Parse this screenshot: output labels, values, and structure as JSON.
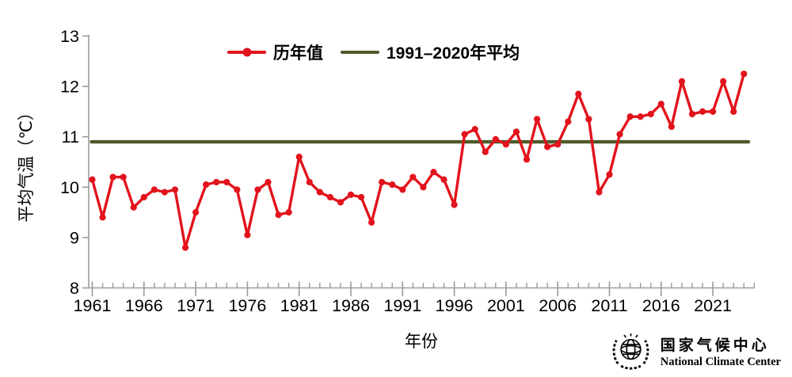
{
  "chart_data": {
    "type": "line",
    "title": "",
    "xlabel": "年份",
    "ylabel": "平均气温（℃）",
    "ylim": [
      8,
      13
    ],
    "ytick_interval": 1,
    "xticks_major": [
      1961,
      1966,
      1971,
      1976,
      1981,
      1986,
      1991,
      1996,
      2001,
      2006,
      2011,
      2016,
      2021
    ],
    "grid": false,
    "legend_position": "top-center",
    "years": [
      1961,
      1962,
      1963,
      1964,
      1965,
      1966,
      1967,
      1968,
      1969,
      1970,
      1971,
      1972,
      1973,
      1974,
      1975,
      1976,
      1977,
      1978,
      1979,
      1980,
      1981,
      1982,
      1983,
      1984,
      1985,
      1986,
      1987,
      1988,
      1989,
      1990,
      1991,
      1992,
      1993,
      1994,
      1995,
      1996,
      1997,
      1998,
      1999,
      2000,
      2001,
      2002,
      2003,
      2004,
      2005,
      2006,
      2007,
      2008,
      2009,
      2010,
      2011,
      2012,
      2013,
      2014,
      2015,
      2016,
      2017,
      2018,
      2019,
      2020,
      2021,
      2022,
      2023,
      2024
    ],
    "series": [
      {
        "name": "历年值",
        "type": "line+marker",
        "color": "#e2131c",
        "values": [
          10.15,
          9.4,
          10.2,
          10.2,
          9.6,
          9.8,
          9.95,
          9.9,
          9.95,
          8.8,
          9.5,
          10.05,
          10.1,
          10.1,
          9.95,
          9.05,
          9.95,
          10.1,
          9.45,
          9.5,
          10.6,
          10.1,
          9.9,
          9.8,
          9.7,
          9.85,
          9.8,
          9.3,
          10.1,
          10.05,
          9.95,
          10.2,
          10.0,
          10.3,
          10.15,
          9.65,
          11.05,
          11.15,
          10.7,
          10.95,
          10.85,
          11.1,
          10.55,
          11.35,
          10.8,
          10.85,
          11.3,
          11.85,
          11.35,
          9.9,
          10.25,
          11.05,
          11.4,
          11.4,
          11.45,
          11.65,
          11.2,
          12.1,
          11.45,
          11.5,
          11.5,
          12.1,
          11.5,
          12.25
        ]
      },
      {
        "name": "1991–2020年平均",
        "type": "hline",
        "color": "#4f5a2b",
        "value": 10.9
      }
    ]
  },
  "logo": {
    "cn": "国家气候中心",
    "en": "National Climate Center"
  }
}
